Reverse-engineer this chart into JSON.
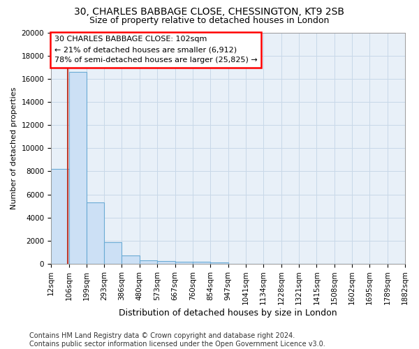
{
  "title1": "30, CHARLES BABBAGE CLOSE, CHESSINGTON, KT9 2SB",
  "title2": "Size of property relative to detached houses in London",
  "xlabel": "Distribution of detached houses by size in London",
  "ylabel": "Number of detached properties",
  "footer1": "Contains HM Land Registry data © Crown copyright and database right 2024.",
  "footer2": "Contains public sector information licensed under the Open Government Licence v3.0.",
  "annotation_line1": "30 CHARLES BABBAGE CLOSE: 102sqm",
  "annotation_line2": "← 21% of detached houses are smaller (6,912)",
  "annotation_line3": "78% of semi-detached houses are larger (25,825) →",
  "property_size": 102,
  "bin_edges": [
    12,
    106,
    199,
    293,
    386,
    480,
    573,
    667,
    760,
    854,
    947,
    1041,
    1134,
    1228,
    1321,
    1415,
    1508,
    1602,
    1695,
    1789,
    1882
  ],
  "bin_counts": [
    8200,
    16600,
    5300,
    1850,
    700,
    320,
    240,
    200,
    190,
    120,
    0,
    0,
    0,
    0,
    0,
    0,
    0,
    0,
    0,
    0
  ],
  "bar_color": "#cce0f5",
  "bar_edge_color": "#6aaad4",
  "line_color": "#c0392b",
  "grid_color": "#c8d8e8",
  "bg_color": "#ffffff",
  "plot_bg_color": "#e8f0f8",
  "ylim": [
    0,
    20000
  ],
  "yticks": [
    0,
    2000,
    4000,
    6000,
    8000,
    10000,
    12000,
    14000,
    16000,
    18000,
    20000
  ],
  "title1_fontsize": 10,
  "title2_fontsize": 9,
  "ylabel_fontsize": 8,
  "xlabel_fontsize": 9,
  "tick_fontsize": 7.5,
  "annotation_fontsize": 8,
  "footer_fontsize": 7
}
